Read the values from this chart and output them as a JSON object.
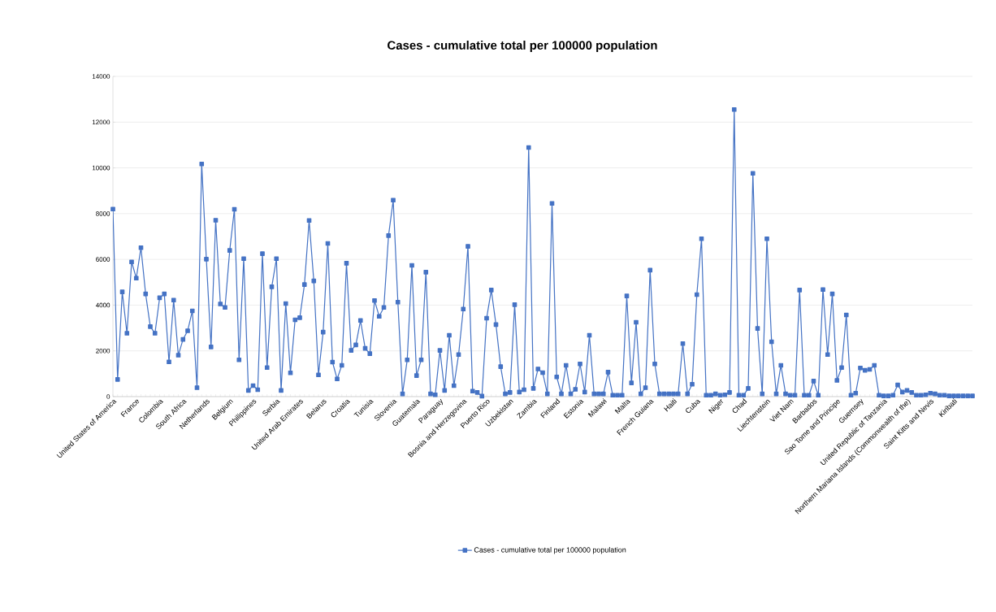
{
  "chart_data": {
    "type": "line",
    "title": "Cases - cumulative total per 100000 population",
    "categories": [
      "United States of America",
      null,
      null,
      null,
      null,
      "France",
      null,
      null,
      null,
      null,
      "Colombia",
      null,
      null,
      null,
      null,
      "South Africa",
      null,
      null,
      null,
      null,
      "Netherlands",
      null,
      null,
      null,
      null,
      "Belgium",
      null,
      null,
      null,
      null,
      "Philippines",
      null,
      null,
      null,
      null,
      "Serbia",
      null,
      null,
      null,
      null,
      "United Arab Emirates",
      null,
      null,
      null,
      null,
      "Belarus",
      null,
      null,
      null,
      null,
      "Croatia",
      null,
      null,
      null,
      null,
      "Tunisia",
      null,
      null,
      null,
      null,
      "Slovenia",
      null,
      null,
      null,
      null,
      "Guatemala",
      null,
      null,
      null,
      null,
      "Paraguay",
      null,
      null,
      null,
      null,
      "Bosnia and Herzegovina",
      null,
      null,
      null,
      null,
      "Puerto Rico",
      null,
      null,
      null,
      null,
      "Uzbekistan",
      null,
      null,
      null,
      null,
      "Zambia",
      null,
      null,
      null,
      null,
      "Finland",
      null,
      null,
      null,
      null,
      "Estonia",
      null,
      null,
      null,
      null,
      "Malawi",
      null,
      null,
      null,
      null,
      "Malta",
      null,
      null,
      null,
      null,
      "French Guiana",
      null,
      null,
      null,
      null,
      "Haiti",
      null,
      null,
      null,
      null,
      "Cuba",
      null,
      null,
      null,
      null,
      "Niger",
      null,
      null,
      null,
      null,
      "Chad",
      null,
      null,
      null,
      null,
      "Liechtenstein",
      null,
      null,
      null,
      null,
      "Viet Nam",
      null,
      null,
      null,
      null,
      "Barbados",
      null,
      null,
      null,
      null,
      "Sao Tome and Principe",
      null,
      null,
      null,
      null,
      "Guernsey",
      null,
      null,
      null,
      null,
      "United Republic of Tanzania",
      null,
      null,
      null,
      null,
      "Northern Mariana Islands (Commonwealth of the)",
      null,
      null,
      null,
      null,
      "Saint Kitts and Nevis",
      null,
      null,
      null,
      null,
      "Kiribati",
      null,
      null,
      null,
      null
    ],
    "series": [
      {
        "name": "Cases - cumulative total per 100000 population",
        "color": "#4472c4",
        "values": [
          8200,
          750,
          4580,
          2770,
          5890,
          5180,
          6510,
          4490,
          3060,
          2770,
          4320,
          4490,
          1520,
          4220,
          1810,
          2500,
          2880,
          3750,
          390,
          10170,
          6010,
          2170,
          7710,
          4050,
          3900,
          6390,
          8190,
          1610,
          6030,
          270,
          480,
          300,
          6250,
          1270,
          4800,
          6030,
          270,
          4070,
          1040,
          3360,
          3450,
          4900,
          7700,
          5060,
          950,
          2820,
          6700,
          1510,
          770,
          1370,
          5830,
          2020,
          2260,
          3330,
          2110,
          1880,
          4200,
          3510,
          3900,
          7040,
          8590,
          4130,
          120,
          1610,
          5740,
          920,
          1610,
          5440,
          120,
          80,
          2020,
          270,
          2680,
          480,
          1840,
          3830,
          6570,
          240,
          180,
          20,
          3430,
          4660,
          3150,
          1310,
          120,
          180,
          4020,
          200,
          300,
          10890,
          360,
          1210,
          1050,
          120,
          8450,
          860,
          120,
          1370,
          120,
          320,
          1430,
          200,
          2680,
          120,
          120,
          120,
          1070,
          60,
          60,
          60,
          4400,
          600,
          3250,
          120,
          390,
          5530,
          1430,
          120,
          120,
          120,
          120,
          120,
          2320,
          120,
          540,
          4460,
          6900,
          60,
          60,
          120,
          60,
          80,
          180,
          12550,
          60,
          60,
          360,
          9760,
          2980,
          120,
          6900,
          2400,
          120,
          1370,
          120,
          60,
          60,
          4660,
          60,
          60,
          680,
          60,
          4680,
          1840,
          4490,
          710,
          1270,
          3570,
          60,
          150,
          1250,
          1150,
          1190,
          1370,
          60,
          30,
          30,
          60,
          510,
          200,
          270,
          180,
          60,
          60,
          80,
          150,
          120,
          60,
          60,
          30,
          30,
          30,
          30,
          30,
          30
        ]
      }
    ],
    "ylim": [
      0,
      14000
    ],
    "yticks": [
      0,
      2000,
      4000,
      6000,
      8000,
      10000,
      12000,
      14000
    ],
    "grid": "y",
    "legend": "bottom",
    "marker": "square",
    "line_style": "solid"
  }
}
